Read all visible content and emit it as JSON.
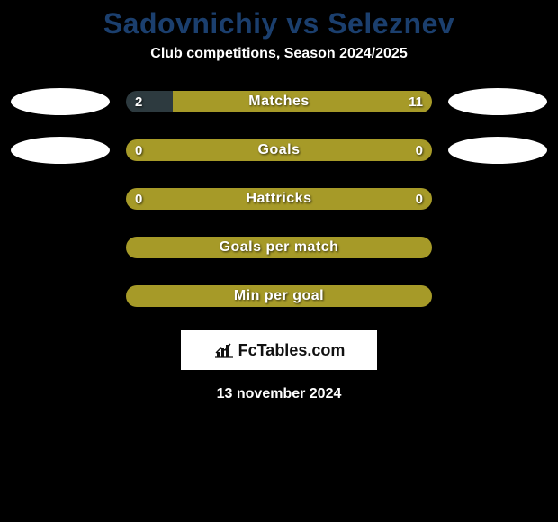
{
  "header": {
    "title": "Sadovnichiy vs Seleznev",
    "subtitle": "Club competitions, Season 2024/2025",
    "title_color": "#1b3f6e"
  },
  "colors": {
    "bar_olive": "#a69a28",
    "bar_dark": "#2d3a3f",
    "avatar_bg": "#ffffff"
  },
  "rows": [
    {
      "label": "Matches",
      "left_value": "2",
      "right_value": "11",
      "left_num": 2,
      "right_num": 11,
      "left_pct": 15.4,
      "right_pct": 84.6,
      "left_color": "#2d3a3f",
      "right_color": "#a69a28",
      "show_avatars": true
    },
    {
      "label": "Goals",
      "left_value": "0",
      "right_value": "0",
      "left_num": 0,
      "right_num": 0,
      "left_pct": 50,
      "right_pct": 50,
      "left_color": "#a69a28",
      "right_color": "#a69a28",
      "show_avatars": true
    },
    {
      "label": "Hattricks",
      "left_value": "0",
      "right_value": "0",
      "left_num": 0,
      "right_num": 0,
      "left_pct": 50,
      "right_pct": 50,
      "left_color": "#a69a28",
      "right_color": "#a69a28",
      "show_avatars": false
    },
    {
      "label": "Goals per match",
      "left_value": "",
      "right_value": "",
      "left_num": 0,
      "right_num": 0,
      "left_pct": 50,
      "right_pct": 50,
      "left_color": "#a69a28",
      "right_color": "#a69a28",
      "show_avatars": false
    },
    {
      "label": "Min per goal",
      "left_value": "",
      "right_value": "",
      "left_num": 0,
      "right_num": 0,
      "left_pct": 50,
      "right_pct": 50,
      "left_color": "#a69a28",
      "right_color": "#a69a28",
      "show_avatars": false
    }
  ],
  "footer": {
    "logo_text": "FcTables.com",
    "date": "13 november 2024"
  }
}
